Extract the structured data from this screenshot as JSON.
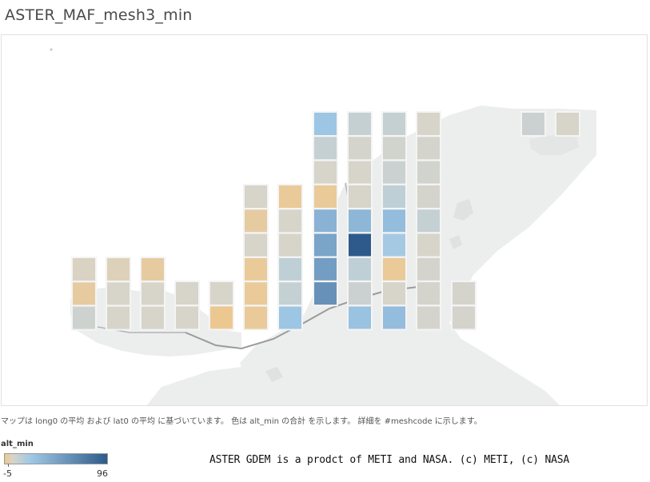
{
  "header": {
    "title": "ASTER_MAF_mesh3_min"
  },
  "map": {
    "caption": "マップは long0 の平均 および lat0 の平均 に基づいています。 色は alt_min の合計 を示します。 詳細を #meshcode に示します。",
    "measure": "alt_min",
    "legend": {
      "title": "alt_min",
      "min_label": "-5",
      "max_label": "96",
      "min_value": -5,
      "max_value": 96
    },
    "color_scale": {
      "low": "#ecc890",
      "mid": "#d7d4ca",
      "high": "#2d5a8a"
    },
    "attribution": "ASTER GDEM is a prodct of METI and NASA. (c) METI, (c) NASA",
    "columns": [
      {
        "cells": [
          {
            "alt": 1
          },
          {
            "alt": -3
          },
          {
            "alt": 5
          }
        ]
      },
      {
        "cells": [
          {
            "alt": 0
          },
          {
            "alt": 2
          },
          {
            "alt": 2
          }
        ]
      },
      {
        "cells": [
          {
            "alt": -3
          },
          {
            "alt": 2
          },
          {
            "alt": 2
          }
        ]
      },
      {
        "cells": [
          {
            "alt": 2
          },
          {
            "alt": 2
          }
        ]
      },
      {
        "cells": [
          {
            "alt": 2
          },
          {
            "alt": -5
          }
        ]
      },
      {
        "cells": [
          {
            "alt": 2
          },
          {
            "alt": -3
          },
          {
            "alt": 2
          },
          {
            "alt": -4
          },
          {
            "alt": -4
          },
          {
            "alt": -4
          }
        ]
      },
      {
        "cells": [
          {
            "alt": -4
          },
          {
            "alt": 2
          },
          {
            "alt": 2
          },
          {
            "alt": 10
          },
          {
            "alt": 8
          },
          {
            "alt": 22
          }
        ]
      },
      {
        "cells": [
          {
            "alt": 22
          },
          {
            "alt": 8
          },
          {
            "alt": 2
          },
          {
            "alt": -4
          },
          {
            "alt": 35
          },
          {
            "alt": 45
          },
          {
            "alt": 50
          },
          {
            "alt": 58
          }
        ]
      },
      {
        "cells": [
          {
            "alt": 8
          },
          {
            "alt": 3
          },
          {
            "alt": 2
          },
          {
            "alt": 2
          },
          {
            "alt": 32
          },
          {
            "alt": 96
          },
          {
            "alt": 10
          },
          {
            "alt": 6
          },
          {
            "alt": 24
          }
        ]
      },
      {
        "cells": [
          {
            "alt": 8
          },
          {
            "alt": 4
          },
          {
            "alt": 6
          },
          {
            "alt": 10
          },
          {
            "alt": 28
          },
          {
            "alt": 18
          },
          {
            "alt": -4
          },
          {
            "alt": 2
          },
          {
            "alt": 28
          }
        ]
      },
      {
        "cells": [
          {
            "alt": 2
          },
          {
            "alt": 3
          },
          {
            "alt": 4
          },
          {
            "alt": 3
          },
          {
            "alt": 8
          },
          {
            "alt": 2
          },
          {
            "alt": 3
          },
          {
            "alt": 3
          },
          {
            "alt": 3
          }
        ]
      },
      {
        "cells": [
          {
            "alt": 3
          },
          {
            "alt": 3
          }
        ]
      },
      {
        "cells": [
          {
            "alt": 6
          }
        ]
      },
      {
        "cells": [
          {
            "alt": 2
          }
        ]
      }
    ]
  }
}
